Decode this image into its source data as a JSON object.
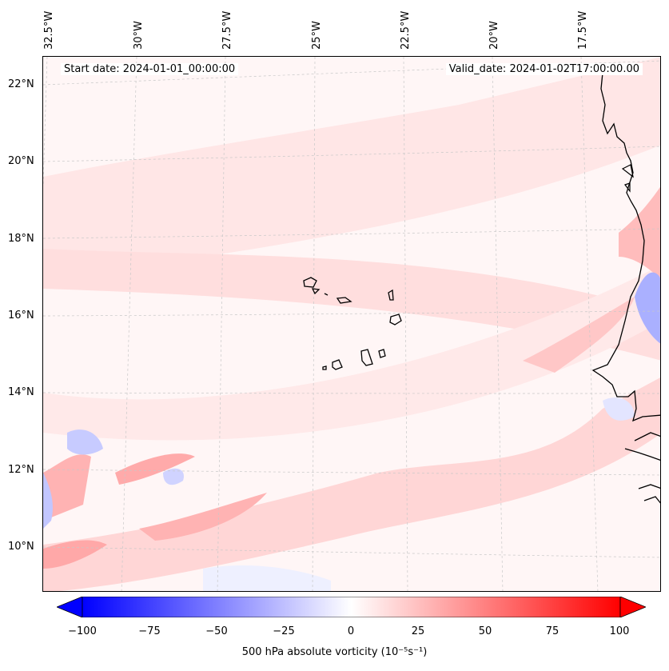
{
  "header": {
    "start_date": "Start date: 2024-01-01_00:00:00",
    "valid_date": "Valid_date: 2024-01-02T17:00:00.00"
  },
  "longitude_labels": [
    "32.5°W",
    "30°W",
    "27.5°W",
    "25°W",
    "22.5°W",
    "20°W",
    "17.5°W"
  ],
  "latitude_labels": [
    "22°N",
    "20°N",
    "18°N",
    "16°N",
    "14°N",
    "12°N",
    "10°N"
  ],
  "colorbar": {
    "ticks": [
      "−100",
      "−75",
      "−50",
      "−25",
      "0",
      "25",
      "50",
      "75",
      "100"
    ],
    "label": "500 hPa absolute vorticity (10⁻⁵s⁻¹)",
    "min_color": "#0000ff",
    "mid_color": "#ffffff",
    "max_color": "#ff0000"
  },
  "colors": {
    "coastline": "#000000",
    "gridline": "#c8c8c8",
    "weak_positive": "#ffd9d9",
    "moderate_positive": "#ffb0b0",
    "weak_negative": "#dde0ff",
    "moderate_negative": "#b3b8ff"
  }
}
